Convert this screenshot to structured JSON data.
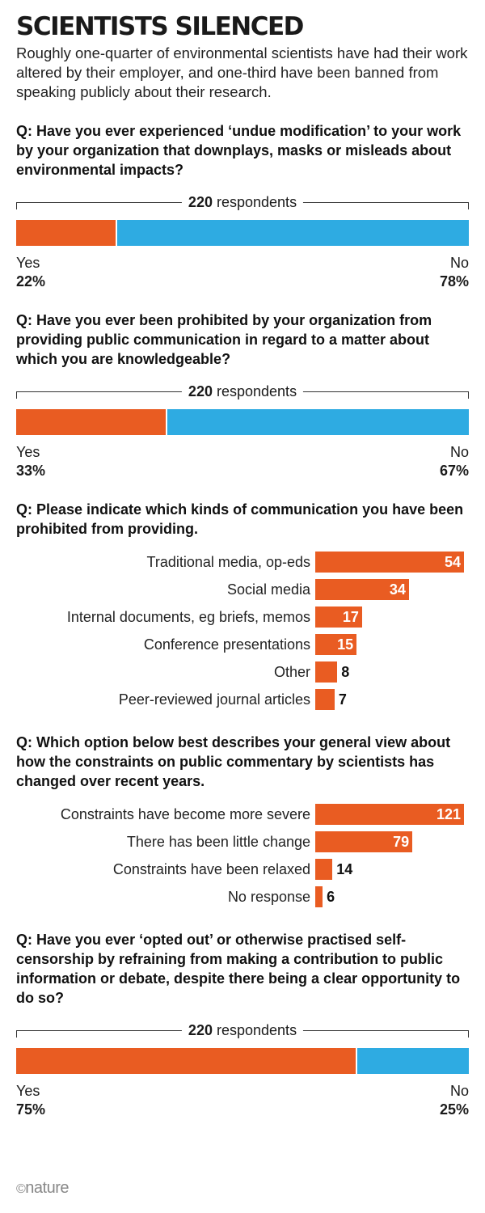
{
  "title": "SCIENTISTS SILENCED",
  "subtitle": "Roughly one-quarter of environmental scientists have had their work altered by their employer, and one-third have been banned from speaking publicly about their research.",
  "logo": "nature",
  "colors": {
    "yes": "#e95c22",
    "no": "#2eabe2",
    "bar": "#e95c22"
  },
  "q1": {
    "question": "Q: Have you ever experienced ‘undue modification’ to your work by your organization that downplays, masks or misleads about environmental impacts?",
    "respondents_n": "220",
    "respondents_text": "respondents",
    "yes_label": "Yes",
    "yes_pct": "22%",
    "no_label": "No",
    "no_pct": "78%"
  },
  "q2": {
    "question": "Q: Have you ever been prohibited by your organization from providing public communication in regard to a matter about which you are knowledgeable?",
    "respondents_n": "220",
    "respondents_text": "respondents",
    "yes_label": "Yes",
    "yes_pct": "33%",
    "no_label": "No",
    "no_pct": "67%"
  },
  "q3": {
    "question": "Q: Please indicate which kinds of communication you have been prohibited from providing."
  },
  "q4": {
    "question": "Q: Which option below best describes your general view about how the constraints on public commentary by scientists has changed over recent years."
  },
  "q5": {
    "question": "Q: Have you ever ‘opted out’ or otherwise practised self-censorship by refraining from making a contribution to public information or debate, despite there being a clear opportunity to do so?",
    "respondents_n": "220",
    "respondents_text": "respondents",
    "yes_label": "Yes",
    "yes_pct": "75%",
    "no_label": "No",
    "no_pct": "25%"
  },
  "chart_data": [
    {
      "type": "bar",
      "orientation": "horizontal-stacked",
      "categories": [
        "Yes",
        "No"
      ],
      "values": [
        22,
        78
      ],
      "unit": "%",
      "respondents": 220
    },
    {
      "type": "bar",
      "orientation": "horizontal-stacked",
      "categories": [
        "Yes",
        "No"
      ],
      "values": [
        33,
        67
      ],
      "unit": "%",
      "respondents": 220
    },
    {
      "type": "bar",
      "orientation": "horizontal",
      "categories": [
        "Traditional media, op-eds",
        "Social media",
        "Internal documents, eg briefs, memos",
        "Conference presentations",
        "Other",
        "Peer-reviewed journal articles"
      ],
      "values": [
        54,
        34,
        17,
        15,
        8,
        7
      ],
      "xlim": [
        0,
        54
      ]
    },
    {
      "type": "bar",
      "orientation": "horizontal",
      "categories": [
        "Constraints have become more severe",
        "There has been little change",
        "Constraints have been relaxed",
        "No response"
      ],
      "values": [
        121,
        79,
        14,
        6
      ],
      "xlim": [
        0,
        121
      ]
    },
    {
      "type": "bar",
      "orientation": "horizontal-stacked",
      "categories": [
        "Yes",
        "No"
      ],
      "values": [
        75,
        25
      ],
      "unit": "%",
      "respondents": 220
    }
  ]
}
